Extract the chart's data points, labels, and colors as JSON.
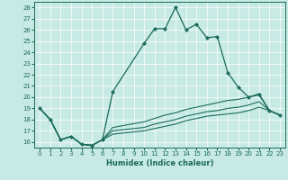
{
  "xlabel": "Humidex (Indice chaleur)",
  "xlim": [
    -0.5,
    23.5
  ],
  "ylim": [
    15.5,
    28.5
  ],
  "xticks": [
    0,
    1,
    2,
    3,
    4,
    5,
    6,
    7,
    8,
    9,
    10,
    11,
    12,
    13,
    14,
    15,
    16,
    17,
    18,
    19,
    20,
    21,
    22,
    23
  ],
  "yticks": [
    16,
    17,
    18,
    19,
    20,
    21,
    22,
    23,
    24,
    25,
    26,
    27,
    28
  ],
  "bg_color": "#c8eae4",
  "line_color": "#1a6b5a",
  "main_line": {
    "x": [
      0,
      1,
      2,
      3,
      4,
      5,
      6,
      7,
      10,
      11,
      12,
      13,
      14,
      15,
      16,
      17,
      18,
      19,
      20,
      21,
      22,
      23
    ],
    "y": [
      19,
      18,
      16.2,
      16.5,
      15.8,
      15.7,
      16.2,
      20.5,
      24.8,
      26.1,
      26.1,
      28.0,
      26.0,
      26.5,
      25.3,
      25.4,
      22.2,
      20.9,
      20.0,
      20.2,
      18.8,
      18.4
    ]
  },
  "flat_lines": [
    {
      "x": [
        0,
        1,
        2,
        3,
        4,
        5,
        6,
        7,
        10,
        11,
        12,
        13,
        14,
        15,
        16,
        17,
        18,
        19,
        20,
        21,
        22,
        23
      ],
      "y": [
        19,
        18,
        16.2,
        16.5,
        15.8,
        15.7,
        16.2,
        17.3,
        17.8,
        18.1,
        18.4,
        18.6,
        18.9,
        19.1,
        19.3,
        19.5,
        19.7,
        19.8,
        20.0,
        20.3,
        18.8,
        18.4
      ]
    },
    {
      "x": [
        0,
        1,
        2,
        3,
        4,
        5,
        6,
        7,
        10,
        11,
        12,
        13,
        14,
        15,
        16,
        17,
        18,
        19,
        20,
        21,
        22,
        23
      ],
      "y": [
        19,
        18,
        16.2,
        16.5,
        15.8,
        15.7,
        16.2,
        17.0,
        17.3,
        17.6,
        17.8,
        18.0,
        18.3,
        18.5,
        18.7,
        18.8,
        19.0,
        19.1,
        19.3,
        19.6,
        18.8,
        18.4
      ]
    },
    {
      "x": [
        0,
        1,
        2,
        3,
        4,
        5,
        6,
        7,
        10,
        11,
        12,
        13,
        14,
        15,
        16,
        17,
        18,
        19,
        20,
        21,
        22,
        23
      ],
      "y": [
        19,
        18,
        16.2,
        16.5,
        15.8,
        15.7,
        16.2,
        16.7,
        17.0,
        17.2,
        17.4,
        17.6,
        17.9,
        18.1,
        18.3,
        18.4,
        18.5,
        18.6,
        18.8,
        19.1,
        18.8,
        18.4
      ]
    }
  ]
}
